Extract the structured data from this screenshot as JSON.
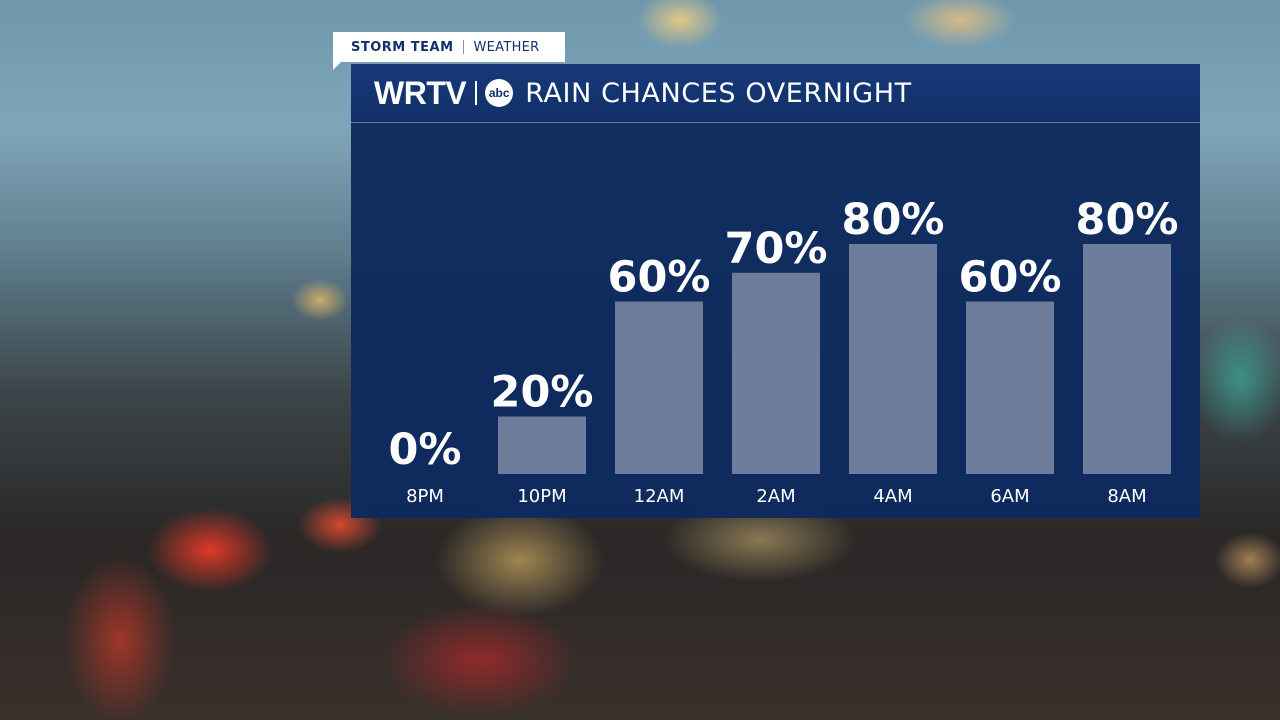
{
  "tag": {
    "left": "STORM TEAM",
    "right": "WEATHER"
  },
  "header": {
    "station": "WRTV",
    "network": "abc",
    "title": "RAIN CHANCES OVERNIGHT"
  },
  "chart_data": {
    "type": "bar",
    "title": "RAIN CHANCES OVERNIGHT",
    "categories": [
      "8PM",
      "10PM",
      "12AM",
      "2AM",
      "4AM",
      "6AM",
      "8AM"
    ],
    "values": [
      0,
      20,
      60,
      70,
      80,
      60,
      80
    ],
    "value_labels": [
      "0%",
      "20%",
      "60%",
      "70%",
      "80%",
      "60%",
      "80%"
    ],
    "ylim": [
      0,
      100
    ],
    "grid": false,
    "bar_color": "#6f7d9c"
  }
}
